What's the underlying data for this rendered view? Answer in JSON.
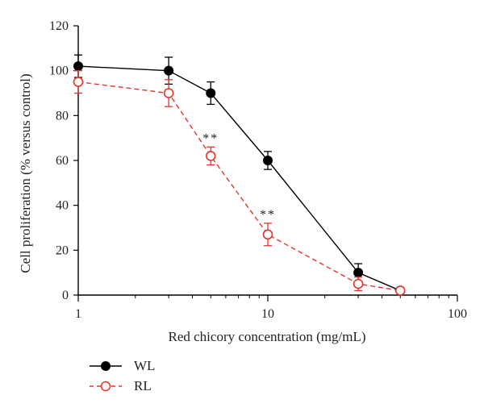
{
  "chart_data": {
    "type": "line",
    "title": "",
    "xlabel": "Red chicory concentration (mg/mL)",
    "ylabel": "Cell proliferation (% versus control)",
    "xscale": "log",
    "xlim": [
      1,
      100
    ],
    "ylim": [
      0,
      120
    ],
    "x_ticks": [
      1,
      10,
      100
    ],
    "y_ticks": [
      0,
      20,
      40,
      60,
      80,
      100,
      120
    ],
    "grid": false,
    "legend_position": "bottom-left",
    "series": [
      {
        "name": "WL",
        "style": "solid",
        "marker": "filled-circle",
        "color": "#000000",
        "x": [
          1,
          3,
          5,
          10,
          30,
          50
        ],
        "y": [
          102,
          100,
          90,
          60,
          10,
          2
        ],
        "err": [
          5,
          6,
          5,
          4,
          4,
          1
        ]
      },
      {
        "name": "RL",
        "style": "dashed",
        "marker": "open-circle",
        "color": "#e8312c",
        "x": [
          1,
          3,
          5,
          10,
          30,
          50
        ],
        "y": [
          95,
          90,
          62,
          27,
          5,
          2
        ],
        "err": [
          5,
          6,
          4,
          5,
          3,
          1
        ]
      }
    ],
    "annotations": [
      {
        "text": "**",
        "x": 5,
        "y": 62
      },
      {
        "text": "**",
        "x": 10,
        "y": 27
      }
    ]
  }
}
